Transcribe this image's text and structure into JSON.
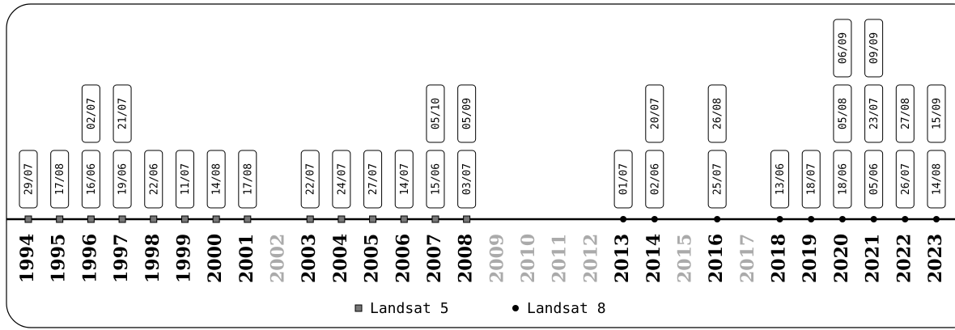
{
  "timeline": {
    "legend": [
      {
        "label": "Landsat 5",
        "marker": "square"
      },
      {
        "label": "Landsat 8",
        "marker": "circle"
      }
    ],
    "years": [
      {
        "label": "1994",
        "sensor": 0,
        "dates": [
          "29/07"
        ]
      },
      {
        "label": "1995",
        "sensor": 0,
        "dates": [
          "17/08"
        ]
      },
      {
        "label": "1996",
        "sensor": 0,
        "dates": [
          "16/06",
          "02/07"
        ]
      },
      {
        "label": "1997",
        "sensor": 0,
        "dates": [
          "19/06",
          "21/07"
        ]
      },
      {
        "label": "1998",
        "sensor": 0,
        "dates": [
          "22/06"
        ]
      },
      {
        "label": "1999",
        "sensor": 0,
        "dates": [
          "11/07"
        ]
      },
      {
        "label": "2000",
        "sensor": 0,
        "dates": [
          "14/08"
        ]
      },
      {
        "label": "2001",
        "sensor": 0,
        "dates": [
          "17/08"
        ]
      },
      {
        "label": "2002",
        "sensor": null,
        "dates": []
      },
      {
        "label": "2003",
        "sensor": 0,
        "dates": [
          "22/07"
        ]
      },
      {
        "label": "2004",
        "sensor": 0,
        "dates": [
          "24/07"
        ]
      },
      {
        "label": "2005",
        "sensor": 0,
        "dates": [
          "27/07"
        ]
      },
      {
        "label": "2006",
        "sensor": 0,
        "dates": [
          "14/07"
        ]
      },
      {
        "label": "2007",
        "sensor": 0,
        "dates": [
          "15/06",
          "05/10"
        ]
      },
      {
        "label": "2008",
        "sensor": 0,
        "dates": [
          "03/07",
          "05/09"
        ]
      },
      {
        "label": "2009",
        "sensor": null,
        "dates": []
      },
      {
        "label": "2010",
        "sensor": null,
        "dates": []
      },
      {
        "label": "2011",
        "sensor": null,
        "dates": []
      },
      {
        "label": "2012",
        "sensor": null,
        "dates": []
      },
      {
        "label": "2013",
        "sensor": 1,
        "dates": [
          "01/07"
        ]
      },
      {
        "label": "2014",
        "sensor": 1,
        "dates": [
          "02/06",
          "20/07"
        ]
      },
      {
        "label": "2015",
        "sensor": null,
        "dates": []
      },
      {
        "label": "2016",
        "sensor": 1,
        "dates": [
          "25/07",
          "26/08"
        ]
      },
      {
        "label": "2017",
        "sensor": null,
        "dates": []
      },
      {
        "label": "2018",
        "sensor": 1,
        "dates": [
          "13/06"
        ]
      },
      {
        "label": "2019",
        "sensor": 1,
        "dates": [
          "18/07"
        ]
      },
      {
        "label": "2020",
        "sensor": 1,
        "dates": [
          "18/06",
          "05/08",
          "06/09"
        ]
      },
      {
        "label": "2021",
        "sensor": 1,
        "dates": [
          "05/06",
          "23/07",
          "09/09"
        ]
      },
      {
        "label": "2022",
        "sensor": 1,
        "dates": [
          "26/07",
          "27/08"
        ]
      },
      {
        "label": "2023",
        "sensor": 1,
        "dates": [
          "14/08",
          "15/09"
        ]
      }
    ]
  }
}
